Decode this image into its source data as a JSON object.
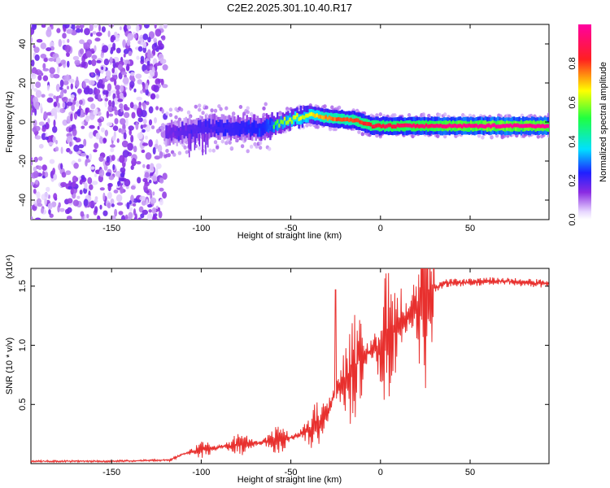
{
  "title": "C2E2.2025.301.10.40.R17",
  "chart_data": [
    {
      "type": "heatmap",
      "xlabel": "Height of straight line (km)",
      "ylabel": "Frequency (Hz)",
      "xlim": [
        -195,
        94
      ],
      "ylim": [
        -50,
        50
      ],
      "x_ticks": [
        "-150",
        "-100",
        "-50",
        "0",
        "50"
      ],
      "x_tick_values": [
        -150,
        -100,
        -50,
        0,
        50
      ],
      "y_ticks": [
        "40",
        "20",
        "0",
        "-20",
        "-40"
      ],
      "y_tick_values": [
        40,
        20,
        0,
        -20,
        -40
      ],
      "colorbar": {
        "label": "Normalized spectral amplitude",
        "range": [
          0,
          1
        ],
        "ticks": [
          "0.0",
          "0.2",
          "0.4",
          "0.6",
          "0.8"
        ],
        "tick_values": [
          0.0,
          0.2,
          0.4,
          0.6,
          0.8
        ],
        "colormap": [
          "#ffffff",
          "#9a3cff",
          "#2020ff",
          "#00e0ff",
          "#20ff40",
          "#ffff00",
          "#ff2020",
          "#ff00a0"
        ]
      },
      "noise_region": {
        "x": [
          -195,
          -120
        ],
        "amplitude": 0.15
      },
      "signal_ridge": [
        {
          "x": -120,
          "f": -6,
          "a": 0.3
        },
        {
          "x": -100,
          "f": -3,
          "a": 0.35
        },
        {
          "x": -80,
          "f": -3,
          "a": 0.4
        },
        {
          "x": -65,
          "f": -3,
          "a": 0.45
        },
        {
          "x": -55,
          "f": 0,
          "a": 0.6
        },
        {
          "x": -40,
          "f": 4,
          "a": 0.65
        },
        {
          "x": -30,
          "f": 2,
          "a": 0.75
        },
        {
          "x": -15,
          "f": 1,
          "a": 0.8
        },
        {
          "x": -5,
          "f": -2,
          "a": 0.85
        },
        {
          "x": 10,
          "f": -2,
          "a": 0.9
        },
        {
          "x": 30,
          "f": -2,
          "a": 0.95
        },
        {
          "x": 60,
          "f": -2,
          "a": 1.0
        },
        {
          "x": 94,
          "f": -2,
          "a": 1.0
        }
      ]
    },
    {
      "type": "line",
      "xlabel": "Height of straight line (km)",
      "ylabel": "SNR (10 * v/v)",
      "y_multiplier": "(x10⁴)",
      "xlim": [
        -195,
        94
      ],
      "ylim": [
        0,
        1.65
      ],
      "x_ticks": [
        "-150",
        "-100",
        "-50",
        "0",
        "50"
      ],
      "x_tick_values": [
        -150,
        -100,
        -50,
        0,
        50
      ],
      "y_ticks": [
        "0.5",
        "1.0",
        "1.5"
      ],
      "y_tick_values": [
        0.5,
        1.0,
        1.5
      ],
      "series": [
        {
          "color": "#e8302e",
          "x": [
            -195,
            -150,
            -118,
            -110,
            -100,
            -90,
            -80,
            -70,
            -60,
            -50,
            -40,
            -35,
            -30,
            -27,
            -25,
            -20,
            -15,
            -10,
            -5,
            0,
            5,
            10,
            15,
            20,
            25,
            30,
            35,
            40,
            50,
            60,
            70,
            80,
            94
          ],
          "y": [
            0.02,
            0.02,
            0.03,
            0.08,
            0.12,
            0.14,
            0.16,
            0.17,
            0.19,
            0.22,
            0.27,
            0.35,
            0.42,
            0.55,
            0.62,
            0.72,
            0.82,
            0.9,
            0.95,
            1.0,
            1.08,
            1.15,
            1.25,
            1.33,
            1.42,
            1.48,
            1.52,
            1.53,
            1.53,
            1.54,
            1.54,
            1.53,
            1.52
          ]
        }
      ]
    }
  ]
}
